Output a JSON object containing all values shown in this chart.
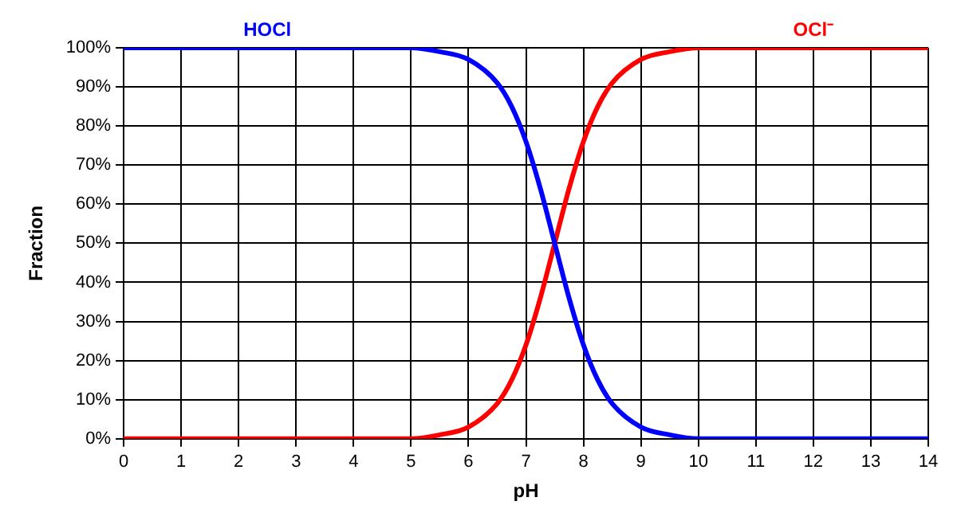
{
  "chart_data": {
    "type": "line",
    "xlabel": "pH",
    "ylabel": "Fraction",
    "x": [
      0,
      1,
      2,
      3,
      4,
      5,
      5.5,
      6,
      6.5,
      6.75,
      7,
      7.25,
      7.5,
      7.75,
      8,
      8.25,
      8.5,
      9,
      9.5,
      10,
      11,
      12,
      13,
      14
    ],
    "series": [
      {
        "name": "HOCl",
        "color": "#0000ff",
        "values": [
          100,
          100,
          100,
          100,
          100,
          100,
          99,
          97,
          91,
          85,
          76,
          64,
          50,
          36,
          24,
          15,
          9,
          3,
          1,
          0,
          0,
          0,
          0,
          0
        ]
      },
      {
        "name": "OCl⁻",
        "color": "#ff0000",
        "values": [
          0,
          0,
          0,
          0,
          0,
          0,
          1,
          3,
          9,
          15,
          24,
          36,
          50,
          64,
          76,
          85,
          91,
          97,
          99,
          100,
          100,
          100,
          100,
          100
        ]
      }
    ],
    "xlim": [
      0,
      14
    ],
    "xticks": [
      0,
      1,
      2,
      3,
      4,
      5,
      6,
      7,
      8,
      9,
      10,
      11,
      12,
      13,
      14
    ],
    "ylim": [
      0,
      100
    ],
    "yticks": [
      {
        "value": 0,
        "label": "0%"
      },
      {
        "value": 10,
        "label": "10%"
      },
      {
        "value": 20,
        "label": "20%"
      },
      {
        "value": 30,
        "label": "30%"
      },
      {
        "value": 40,
        "label": "40%"
      },
      {
        "value": 50,
        "label": "50%"
      },
      {
        "value": 60,
        "label": "60%"
      },
      {
        "value": 70,
        "label": "70%"
      },
      {
        "value": 80,
        "label": "80%"
      },
      {
        "value": 90,
        "label": "90%"
      },
      {
        "value": 100,
        "label": "100%"
      }
    ],
    "grid": true,
    "legend": false,
    "marker": "none",
    "line_style": "solid"
  }
}
